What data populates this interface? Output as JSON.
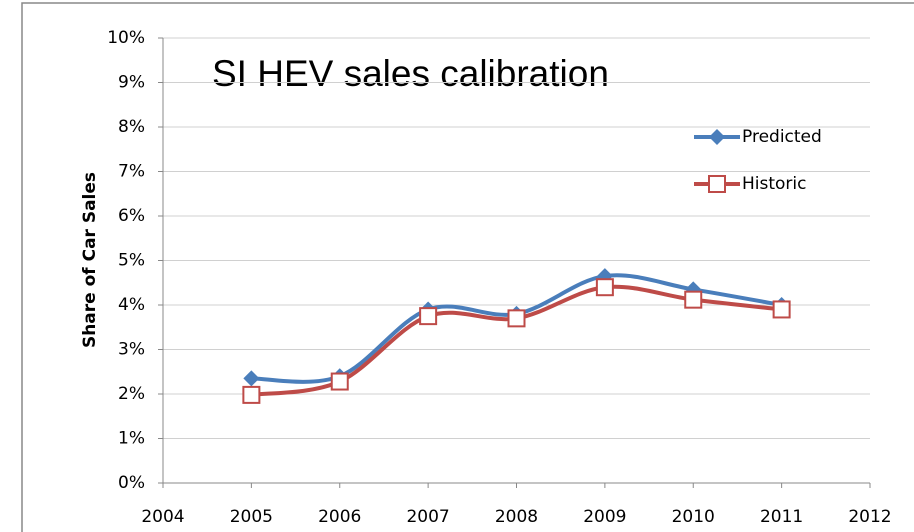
{
  "chart_data": {
    "type": "line",
    "title": "SI HEV sales calibration",
    "y_label": "Share of Car Sales",
    "x": [
      2005,
      2006,
      2007,
      2008,
      2009,
      2010,
      2011
    ],
    "series": [
      {
        "name": "Predicted",
        "color": "#4a7ebb",
        "marker": "diamond",
        "values": [
          2.35,
          2.4,
          3.9,
          3.8,
          4.65,
          4.35,
          4.0
        ]
      },
      {
        "name": "Historic",
        "color": "#be4b48",
        "marker": "square",
        "values": [
          1.98,
          2.28,
          3.75,
          3.7,
          4.4,
          4.12,
          3.9
        ]
      }
    ],
    "xlim": [
      2004,
      2012
    ],
    "xticks": [
      2004,
      2005,
      2006,
      2007,
      2008,
      2009,
      2010,
      2011,
      2012
    ],
    "ylim": [
      0,
      10
    ],
    "yticks": [
      {
        "value": 0,
        "label": "0%"
      },
      {
        "value": 1,
        "label": "1%"
      },
      {
        "value": 2,
        "label": "2%"
      },
      {
        "value": 3,
        "label": "3%"
      },
      {
        "value": 4,
        "label": "4%"
      },
      {
        "value": 5,
        "label": "5%"
      },
      {
        "value": 6,
        "label": "6%"
      },
      {
        "value": 7,
        "label": "7%"
      },
      {
        "value": 8,
        "label": "8%"
      },
      {
        "value": 9,
        "label": "9%"
      },
      {
        "value": 10,
        "label": "10%"
      }
    ],
    "grid": true,
    "smooth": true,
    "legend": "upper right"
  }
}
